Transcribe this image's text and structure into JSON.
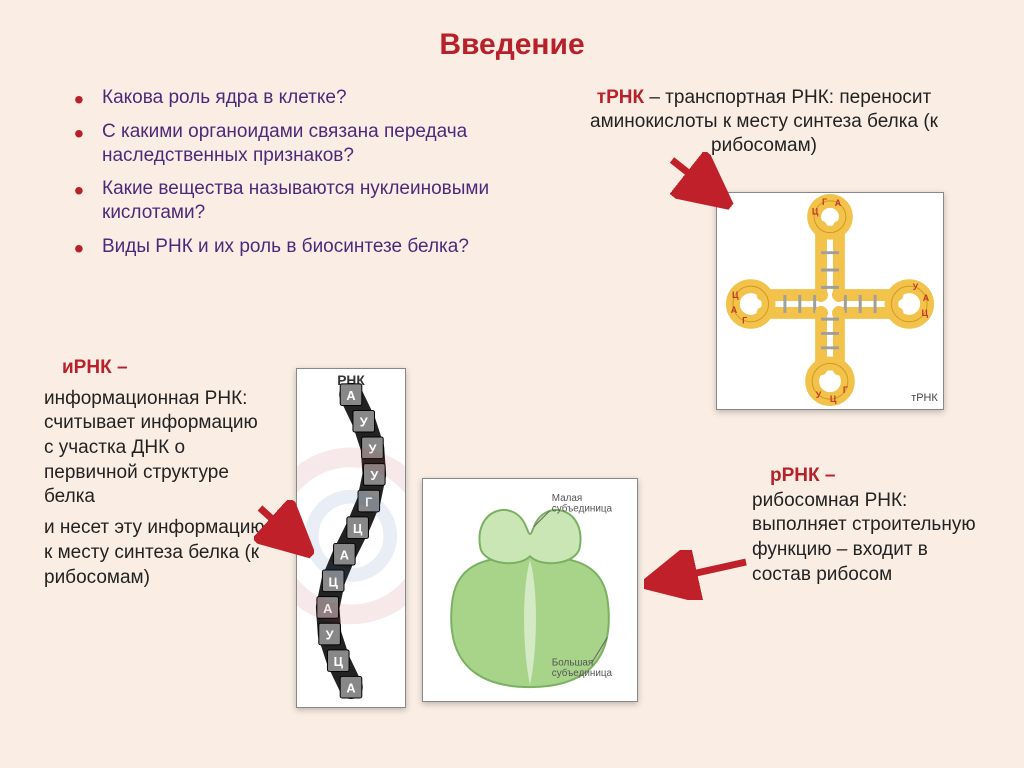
{
  "colors": {
    "background": "#faeee4",
    "title": "#b8202a",
    "bullet_text": "#4b2a7a",
    "bullet_marker": "#b8202a",
    "trna_label": "#b8202a",
    "irna_label": "#b8202a",
    "rrna_label": "#b8202a",
    "body_text": "#222222",
    "arrow": "#c0202a",
    "box_shadow": "#999999",
    "bases": {
      "a": "#2e5aa8",
      "u": "#d32f2f",
      "g": "#e6b800",
      "c": "#2e7d32"
    },
    "ribosome_small": "#cae6b4",
    "ribosome_large": "#a8d48a",
    "ribosome_stroke": "#7ab062",
    "trna_strand": "#f2c24a",
    "trna_stroke": "#d19a22",
    "trna_pair": "#9e9e9e"
  },
  "fonts": {
    "title_size": 30,
    "bullet_size": 19,
    "body_size": 19,
    "small_label_size": 10
  },
  "title": "Введение",
  "bullets": [
    "Какова роль ядра в клетке?",
    "С какими органоидами связана передача наследственных признаков?",
    "Какие вещества называются нуклеиновыми кислотами?",
    "Виды РНК и их роль в биосинтезе белка?"
  ],
  "trna": {
    "label": "тРНК",
    "text": " – транспортная РНК: переносит аминокислоты к месту синтеза белка (к рибосомам)",
    "loop_bases_top": [
      "Ц",
      "Г",
      "А"
    ],
    "loop_bases_left": [
      "Г",
      "А",
      "Ц"
    ],
    "loop_bases_right": [
      "У",
      "А",
      "Ц"
    ],
    "loop_bases_bottom": [
      "Г",
      "Ц",
      "У"
    ],
    "stem_pair_count": 4,
    "caption": "тРНК"
  },
  "irna": {
    "label": "иРНК –",
    "para1": "информационная РНК: считывает информацию с участка ДНК о первичной структуре белка",
    "para2": "и несет эту информацию к месту синтеза белка (к рибосомам)",
    "caption": "РНК",
    "sequence": [
      "А",
      "У",
      "У",
      "У",
      "Г",
      "Ц",
      "А",
      "Ц",
      "А",
      "У",
      "Ц",
      "А"
    ]
  },
  "rrna": {
    "label": "рРНК –",
    "text": "рибосомная РНК: выполняет строительную функцию – входит в состав рибосом"
  },
  "ribosome": {
    "small_label": "Малая субъединица",
    "large_label": "Большая субъединица"
  }
}
